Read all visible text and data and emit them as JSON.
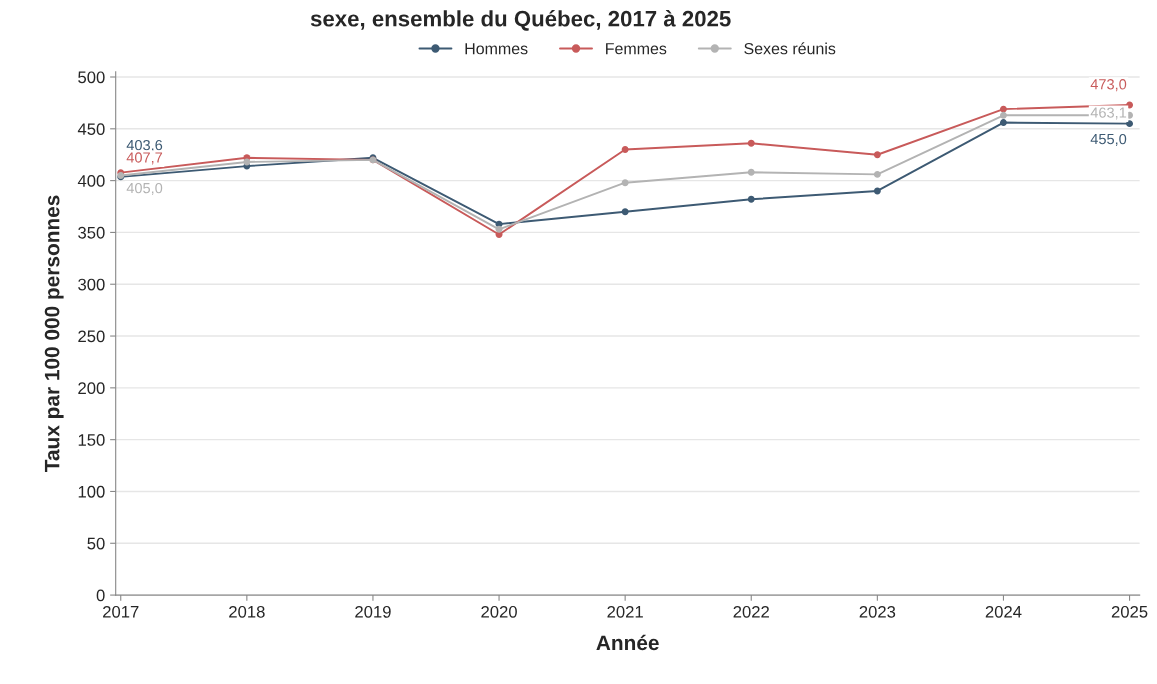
{
  "chart_data": {
    "type": "line",
    "title": "sexe, ensemble du Québec, 2017 à 2025",
    "xlabel": "Année",
    "ylabel": "Taux par 100 000 personnes",
    "x": [
      2017,
      2018,
      2019,
      2020,
      2021,
      2022,
      2023,
      2024,
      2025
    ],
    "series": [
      {
        "name": "Hommes",
        "color": "#3d5a73",
        "values": [
          403.6,
          414,
          422,
          358,
          370,
          382,
          390,
          456,
          455.0
        ],
        "value_labels": [
          "403,6",
          null,
          null,
          null,
          null,
          null,
          null,
          null,
          "455,0"
        ]
      },
      {
        "name": "Femmes",
        "color": "#c85a5a",
        "values": [
          407.7,
          422,
          420,
          348,
          430,
          436,
          425,
          469,
          473.0
        ],
        "value_labels": [
          "407,7",
          null,
          null,
          null,
          null,
          null,
          null,
          null,
          "473,0"
        ]
      },
      {
        "name": "Sexes réunis",
        "color": "#b3b3b3",
        "values": [
          405.0,
          418,
          420,
          353,
          398,
          408,
          406,
          463,
          463.1
        ],
        "value_labels": [
          "405,0",
          null,
          null,
          null,
          null,
          null,
          null,
          null,
          "463,1"
        ]
      }
    ],
    "xlim": [
      2016.96,
      2025.08
    ],
    "xticks": [
      2017,
      2018,
      2019,
      2020,
      2021,
      2022,
      2023,
      2024,
      2025
    ],
    "ylim": [
      0,
      505
    ],
    "yticks": [
      0,
      50,
      100,
      150,
      200,
      250,
      300,
      350,
      400,
      450,
      500
    ],
    "grid": "y",
    "legend": "top",
    "marker": "circle",
    "line_style": "solid"
  }
}
